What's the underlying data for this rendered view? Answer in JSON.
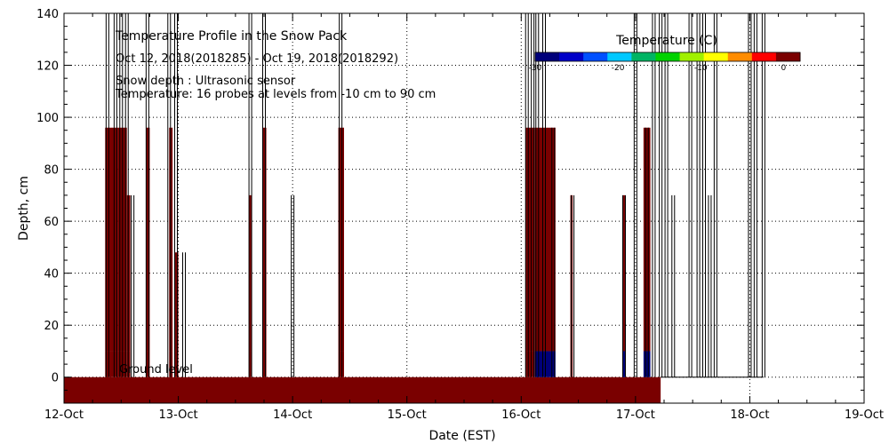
{
  "chart_data": {
    "type": "heatmap",
    "title": "Temperature Profile in the Snow Pack",
    "subtitle": "Oct 12, 2018(2018285) - Oct 19, 2018(2018292)",
    "annotations": [
      "Snow depth : Ultrasonic sensor",
      "Temperature: 16 probes at levels from -10 cm to 90 cm"
    ],
    "ground_label": "Ground level",
    "xlabel": "Date (EST)",
    "ylabel": "Depth, cm",
    "x_ticks": [
      "12-Oct",
      "13-Oct",
      "14-Oct",
      "15-Oct",
      "16-Oct",
      "17-Oct",
      "18-Oct",
      "19-Oct"
    ],
    "xlim_days": [
      0,
      7
    ],
    "ylim": [
      -10,
      140
    ],
    "y_ticks": [
      0,
      20,
      40,
      60,
      80,
      100,
      120,
      140
    ],
    "grid": true,
    "colorbar": {
      "title": "Temperature (C)",
      "range": [
        -30,
        2
      ],
      "tick_values": [
        -30,
        -20,
        -10,
        0
      ],
      "tick_labels": [
        "-30",
        "-20",
        "-10",
        "0"
      ],
      "colors": [
        "#00007a",
        "#0000c8",
        "#0050ff",
        "#00c8ff",
        "#00b464",
        "#00d200",
        "#a0f000",
        "#ffff00",
        "#ff8c00",
        "#ff0000",
        "#7a0000"
      ]
    },
    "ground_band": {
      "x_end_day": 5.22,
      "temperature": 2
    },
    "ground_warm_patches": [
      {
        "x_start_day": 1.9,
        "x_end_day": 2.35,
        "temperature": 1
      },
      {
        "x_start_day": 3.0,
        "x_end_day": 3.35,
        "temperature": 1
      }
    ],
    "snow_depth_spikes": [
      {
        "x_day": 0.38,
        "depth": 140
      },
      {
        "x_day": 0.45,
        "depth": 140
      },
      {
        "x_day": 0.5,
        "depth": 140
      },
      {
        "x_day": 0.55,
        "depth": 140
      },
      {
        "x_day": 0.6,
        "depth": 70
      },
      {
        "x_day": 0.73,
        "depth": 140
      },
      {
        "x_day": 0.92,
        "depth": 140
      },
      {
        "x_day": 0.98,
        "depth": 140
      },
      {
        "x_day": 1.05,
        "depth": 48
      },
      {
        "x_day": 1.63,
        "depth": 140
      },
      {
        "x_day": 1.75,
        "depth": 140
      },
      {
        "x_day": 2.0,
        "depth": 70
      },
      {
        "x_day": 2.42,
        "depth": 140
      },
      {
        "x_day": 4.05,
        "depth": 140
      },
      {
        "x_day": 4.1,
        "depth": 140
      },
      {
        "x_day": 4.14,
        "depth": 140
      },
      {
        "x_day": 4.2,
        "depth": 140
      },
      {
        "x_day": 4.28,
        "depth": 96
      },
      {
        "x_day": 4.45,
        "depth": 70
      },
      {
        "x_day": 4.9,
        "depth": 70
      },
      {
        "x_day": 5.0,
        "depth": 140
      },
      {
        "x_day": 5.1,
        "depth": 96
      },
      {
        "x_day": 5.16,
        "depth": 140
      },
      {
        "x_day": 5.22,
        "depth": 140
      },
      {
        "x_day": 5.27,
        "depth": 140
      },
      {
        "x_day": 5.33,
        "depth": 70
      },
      {
        "x_day": 5.48,
        "depth": 140
      },
      {
        "x_day": 5.55,
        "depth": 140
      },
      {
        "x_day": 5.6,
        "depth": 140
      },
      {
        "x_day": 5.65,
        "depth": 70
      },
      {
        "x_day": 5.7,
        "depth": 140
      },
      {
        "x_day": 6.0,
        "depth": 140
      },
      {
        "x_day": 6.05,
        "depth": 140
      },
      {
        "x_day": 6.12,
        "depth": 140
      }
    ],
    "probe_columns": [
      {
        "x_start_day": 0.36,
        "x_end_day": 0.47,
        "top_depth": 96,
        "low_temperature": 1
      },
      {
        "x_start_day": 0.47,
        "x_end_day": 0.55,
        "top_depth": 96,
        "low_temperature": 1
      },
      {
        "x_start_day": 0.55,
        "x_end_day": 0.58,
        "top_depth": 70,
        "low_temperature": 2
      },
      {
        "x_start_day": 0.72,
        "x_end_day": 0.75,
        "top_depth": 96,
        "low_temperature": 1
      },
      {
        "x_start_day": 0.92,
        "x_end_day": 0.95,
        "top_depth": 96,
        "low_temperature": 1
      },
      {
        "x_start_day": 0.97,
        "x_end_day": 1.0,
        "top_depth": 48,
        "low_temperature": 2
      },
      {
        "x_start_day": 1.62,
        "x_end_day": 1.64,
        "top_depth": 70,
        "low_temperature": 1
      },
      {
        "x_start_day": 1.74,
        "x_end_day": 1.77,
        "top_depth": 96,
        "low_temperature": 1
      },
      {
        "x_start_day": 2.4,
        "x_end_day": 2.45,
        "top_depth": 96,
        "low_temperature": 1
      },
      {
        "x_start_day": 4.04,
        "x_end_day": 4.12,
        "top_depth": 96,
        "low_temperature": 1
      },
      {
        "x_start_day": 4.12,
        "x_end_day": 4.2,
        "top_depth": 96,
        "low_temperature": -28
      },
      {
        "x_start_day": 4.2,
        "x_end_day": 4.3,
        "top_depth": 96,
        "low_temperature": -28
      },
      {
        "x_start_day": 4.43,
        "x_end_day": 4.45,
        "top_depth": 70,
        "low_temperature": 2
      },
      {
        "x_start_day": 4.89,
        "x_end_day": 4.91,
        "top_depth": 70,
        "low_temperature": -28
      },
      {
        "x_start_day": 5.07,
        "x_end_day": 5.13,
        "top_depth": 96,
        "low_temperature": -28
      }
    ]
  }
}
